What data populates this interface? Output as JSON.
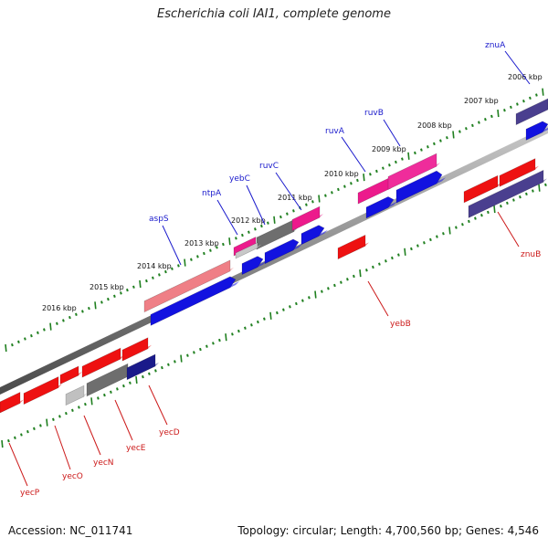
{
  "title": "Escherichia coli IAI1, complete genome",
  "footer": {
    "accession": "Accession: NC_011741",
    "summary": "Topology: circular; Length: 4,700,560 bp; Genes: 4,546"
  },
  "colors": {
    "backbone": "#8a8a8a",
    "ticks": "#1f7f1f",
    "label_top": "#1a1acc",
    "label_bottom": "#cc1a1a"
  },
  "kbp_labels": [
    "2006 kbp",
    "2007 kbp",
    "2008 kbp",
    "2009 kbp",
    "2010 kbp",
    "2011 kbp",
    "2012 kbp",
    "2013 kbp",
    "2014 kbp",
    "2015 kbp",
    "2016 kbp"
  ],
  "genes_top": [
    "znuA",
    "ruvB",
    "ruvA",
    "ruvC",
    "yebC",
    "ntpA",
    "aspS"
  ],
  "genes_bottom": [
    "znuB",
    "yebB",
    "yecD",
    "yecE",
    "yecN",
    "yecO",
    "yecP"
  ]
}
